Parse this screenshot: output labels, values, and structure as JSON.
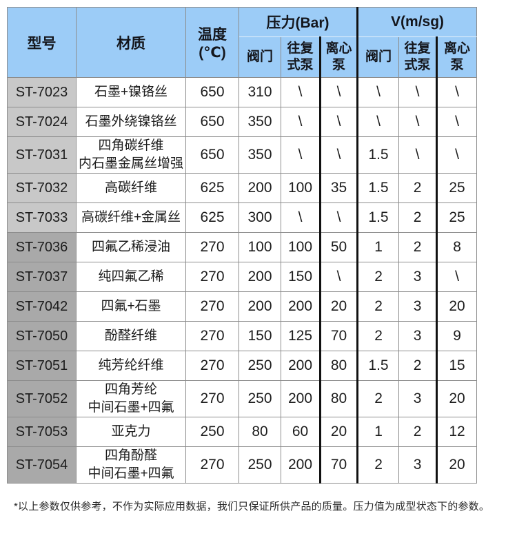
{
  "colors": {
    "header_bg": "#9cccf7",
    "model_bg_group1": "#c8c8c8",
    "model_bg_group2": "#a9a9a9",
    "grid_line": "#8c8c8c",
    "thick_line": "#111111",
    "text": "#1c1c1c"
  },
  "header": {
    "model": "型号",
    "material": "材质",
    "temperature": "温度(℃)",
    "pressure_group": "压力(Bar)",
    "velocity_group": "V(m/sg)",
    "sub_valve": "阀门",
    "sub_reciprocating_pump": "往复式泵",
    "sub_centrifugal_pump": "离心泵"
  },
  "rows": [
    {
      "model": "ST-7023",
      "material": [
        "石墨+镍铬丝"
      ],
      "temp": "650",
      "pressure": [
        "310",
        "\\",
        "\\"
      ],
      "velocity": [
        "\\",
        "\\",
        "\\"
      ],
      "group": 1
    },
    {
      "model": "ST-7024",
      "material": [
        "石墨外绕镍铬丝"
      ],
      "temp": "650",
      "pressure": [
        "350",
        "\\",
        "\\"
      ],
      "velocity": [
        "\\",
        "\\",
        "\\"
      ],
      "group": 1
    },
    {
      "model": "ST-7031",
      "material": [
        "四角碳纤维",
        "内石墨金属丝增强"
      ],
      "temp": "650",
      "pressure": [
        "350",
        "\\",
        "\\"
      ],
      "velocity": [
        "1.5",
        "\\",
        "\\"
      ],
      "group": 1
    },
    {
      "model": "ST-7032",
      "material": [
        "高碳纤维"
      ],
      "temp": "625",
      "pressure": [
        "200",
        "100",
        "35"
      ],
      "velocity": [
        "1.5",
        "2",
        "25"
      ],
      "group": 1
    },
    {
      "model": "ST-7033",
      "material": [
        "高碳纤维+金属丝"
      ],
      "temp": "625",
      "pressure": [
        "300",
        "\\",
        "\\"
      ],
      "velocity": [
        "1.5",
        "2",
        "25"
      ],
      "group": 1
    },
    {
      "model": "ST-7036",
      "material": [
        "四氟乙稀浸油"
      ],
      "temp": "270",
      "pressure": [
        "100",
        "100",
        "50"
      ],
      "velocity": [
        "1",
        "2",
        "8"
      ],
      "group": 2
    },
    {
      "model": "ST-7037",
      "material": [
        "纯四氟乙稀"
      ],
      "temp": "270",
      "pressure": [
        "200",
        "150",
        "\\"
      ],
      "velocity": [
        "2",
        "3",
        "\\"
      ],
      "group": 2
    },
    {
      "model": "ST-7042",
      "material": [
        "四氟+石墨"
      ],
      "temp": "270",
      "pressure": [
        "200",
        "200",
        "20"
      ],
      "velocity": [
        "2",
        "3",
        "20"
      ],
      "group": 2
    },
    {
      "model": "ST-7050",
      "material": [
        "酚醛纤维"
      ],
      "temp": "270",
      "pressure": [
        "150",
        "125",
        "70"
      ],
      "velocity": [
        "2",
        "3",
        "9"
      ],
      "group": 2
    },
    {
      "model": "ST-7051",
      "material": [
        "纯芳纶纤维"
      ],
      "temp": "270",
      "pressure": [
        "250",
        "200",
        "80"
      ],
      "velocity": [
        "1.5",
        "2",
        "15"
      ],
      "group": 2
    },
    {
      "model": "ST-7052",
      "material": [
        "四角芳纶",
        "中间石墨+四氟"
      ],
      "temp": "270",
      "pressure": [
        "250",
        "200",
        "80"
      ],
      "velocity": [
        "2",
        "3",
        "20"
      ],
      "group": 2
    },
    {
      "model": "ST-7053",
      "material": [
        "亚克力"
      ],
      "temp": "250",
      "pressure": [
        "80",
        "60",
        "20"
      ],
      "velocity": [
        "1",
        "2",
        "12"
      ],
      "group": 2
    },
    {
      "model": "ST-7054",
      "material": [
        "四角酚醛",
        "中间石墨+四氟"
      ],
      "temp": "270",
      "pressure": [
        "250",
        "200",
        "70"
      ],
      "velocity": [
        "2",
        "3",
        "20"
      ],
      "group": 2
    }
  ],
  "footnote": "*以上参数仅供参考，不作为实际应用数据，我们只保证所供产品的质量。压力值为成型状态下的参数。"
}
